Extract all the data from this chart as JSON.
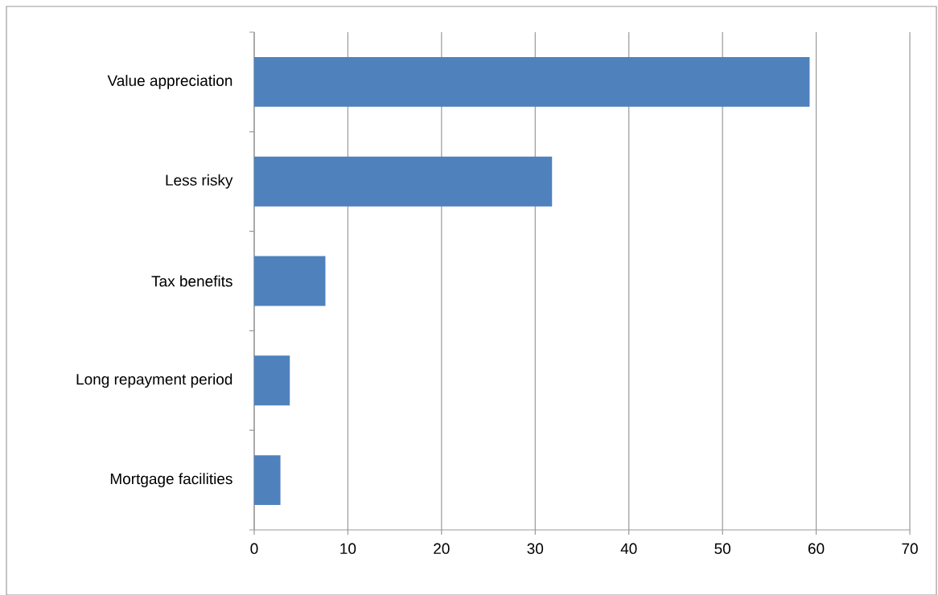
{
  "chart_data": {
    "type": "bar",
    "orientation": "horizontal",
    "categories": [
      "Value appreciation",
      "Less risky",
      "Tax benefits",
      "Long repayment period",
      "Mortgage facilities"
    ],
    "values": [
      59.3,
      31.8,
      7.6,
      3.8,
      2.8
    ],
    "color": "#4f81bd",
    "xlim": [
      0,
      70
    ],
    "xticks": [
      0,
      10,
      20,
      30,
      40,
      50,
      60,
      70
    ],
    "grid": "x"
  }
}
